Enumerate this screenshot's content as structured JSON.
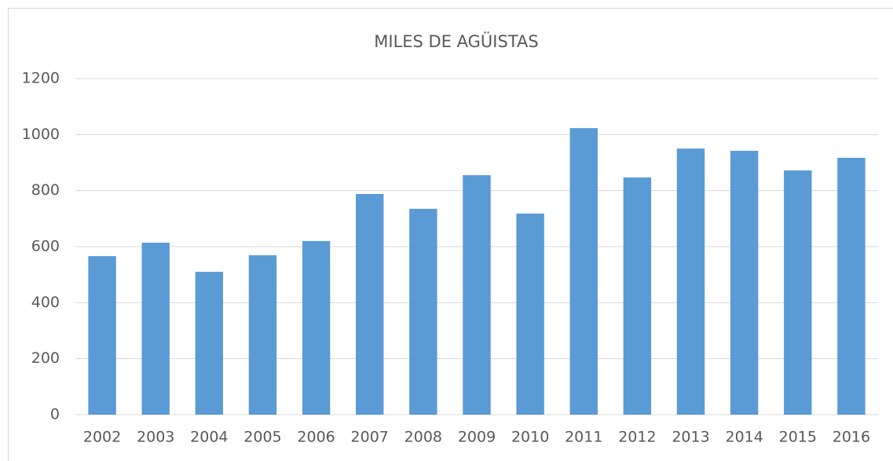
{
  "chart_data": {
    "type": "bar",
    "title": "MILES DE AGÜISTAS",
    "categories": [
      "2002",
      "2003",
      "2004",
      "2005",
      "2006",
      "2007",
      "2008",
      "2009",
      "2010",
      "2011",
      "2012",
      "2013",
      "2014",
      "2015",
      "2016"
    ],
    "values": [
      566,
      614,
      510,
      569,
      620,
      788,
      735,
      855,
      718,
      1023,
      847,
      950,
      942,
      872,
      917
    ],
    "color": "#5b9bd5",
    "ylim": [
      0,
      1200
    ],
    "yticks": [
      0,
      200,
      400,
      600,
      800,
      1000,
      1200
    ],
    "grid": true
  }
}
